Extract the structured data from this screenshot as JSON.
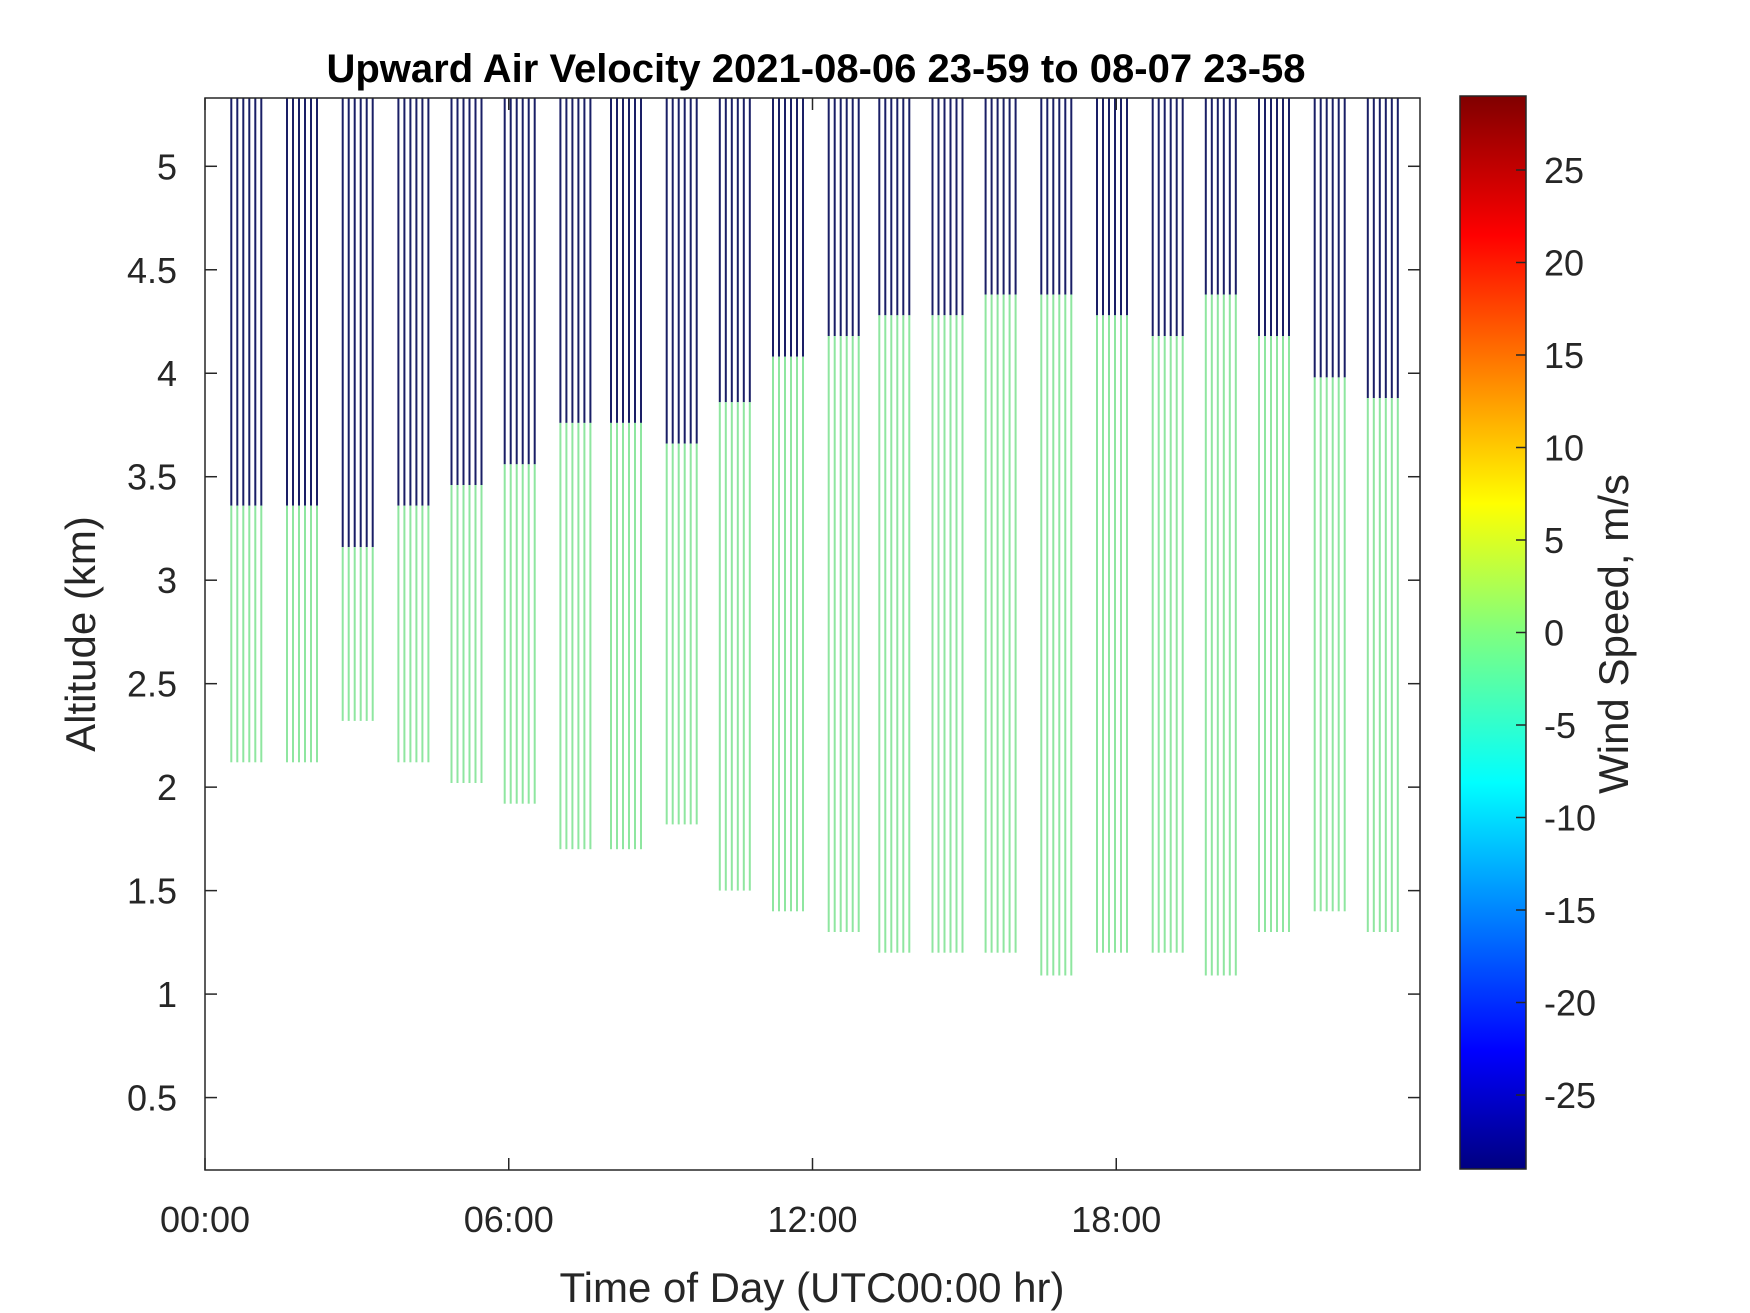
{
  "chart_data": {
    "type": "heatmap",
    "title": "Upward Air Velocity 2021-08-06 23-59 to 08-07 23-58",
    "xlabel": "Time of Day (UTC00:00 hr)",
    "ylabel": "Altitude (km)",
    "xlim": [
      0,
      24
    ],
    "ylim": [
      0.15,
      5.33
    ],
    "x_ticks": [
      0,
      6,
      12,
      18
    ],
    "x_tick_labels": [
      "00:00",
      "06:00",
      "12:00",
      "18:00"
    ],
    "y_ticks": [
      0.5,
      1,
      1.5,
      2,
      2.5,
      3,
      3.5,
      4,
      4.5,
      5
    ],
    "y_tick_labels": [
      "0.5",
      "1",
      "1.5",
      "2",
      "2.5",
      "3",
      "3.5",
      "4",
      "4.5",
      "5"
    ],
    "colorbar": {
      "label": "Wind Speed, m/s",
      "colormap": "jet",
      "clim": [
        -29,
        29
      ],
      "ticks": [
        -25,
        -20,
        -15,
        -10,
        -5,
        0,
        5,
        10,
        15,
        20,
        25
      ],
      "tick_labels": [
        "-25",
        "-20",
        "-15",
        "-10",
        "-5",
        "0",
        "5",
        "10",
        "15",
        "20",
        "25"
      ]
    },
    "value_colors": {
      "near_zero": "#8fe6a0",
      "very_negative": "#1a1f66"
    },
    "scan_blocks": [
      {
        "start": 0.5,
        "end": 1.15,
        "green_bottom": 2.12,
        "green_top": 3.36
      },
      {
        "start": 1.6,
        "end": 2.2,
        "green_bottom": 2.12,
        "green_top": 3.36
      },
      {
        "start": 2.7,
        "end": 3.3,
        "green_bottom": 2.32,
        "green_top": 3.16
      },
      {
        "start": 3.8,
        "end": 4.4,
        "green_bottom": 2.12,
        "green_top": 3.36
      },
      {
        "start": 4.85,
        "end": 5.45,
        "green_bottom": 2.02,
        "green_top": 3.46
      },
      {
        "start": 5.9,
        "end": 6.5,
        "green_bottom": 1.92,
        "green_top": 3.56
      },
      {
        "start": 7.0,
        "end": 7.6,
        "green_bottom": 1.7,
        "green_top": 3.76
      },
      {
        "start": 8.0,
        "end": 8.6,
        "green_bottom": 1.7,
        "green_top": 3.76
      },
      {
        "start": 9.1,
        "end": 9.7,
        "green_bottom": 1.82,
        "green_top": 3.66
      },
      {
        "start": 10.15,
        "end": 10.75,
        "green_bottom": 1.5,
        "green_top": 3.86
      },
      {
        "start": 11.2,
        "end": 11.8,
        "green_bottom": 1.4,
        "green_top": 4.08
      },
      {
        "start": 12.3,
        "end": 12.9,
        "green_bottom": 1.3,
        "green_top": 4.18
      },
      {
        "start": 13.3,
        "end": 13.9,
        "green_bottom": 1.2,
        "green_top": 4.28
      },
      {
        "start": 14.35,
        "end": 14.95,
        "green_bottom": 1.2,
        "green_top": 4.28
      },
      {
        "start": 15.4,
        "end": 16.0,
        "green_bottom": 1.2,
        "green_top": 4.38
      },
      {
        "start": 16.5,
        "end": 17.1,
        "green_bottom": 1.09,
        "green_top": 4.38
      },
      {
        "start": 17.6,
        "end": 18.2,
        "green_bottom": 1.2,
        "green_top": 4.28
      },
      {
        "start": 18.7,
        "end": 19.3,
        "green_bottom": 1.2,
        "green_top": 4.18
      },
      {
        "start": 19.75,
        "end": 20.35,
        "green_bottom": 1.09,
        "green_top": 4.38
      },
      {
        "start": 20.8,
        "end": 21.4,
        "green_bottom": 1.3,
        "green_top": 4.18
      },
      {
        "start": 21.9,
        "end": 22.5,
        "green_bottom": 1.4,
        "green_top": 3.98
      },
      {
        "start": 22.95,
        "end": 23.55,
        "green_bottom": 1.3,
        "green_top": 3.88
      }
    ]
  }
}
